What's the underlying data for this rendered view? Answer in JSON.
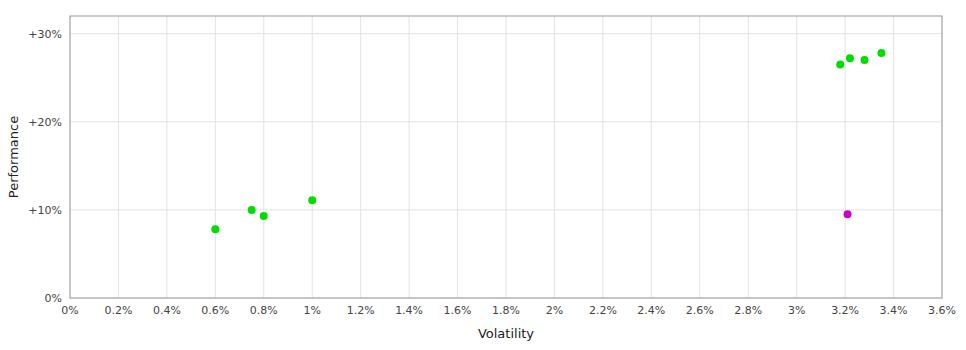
{
  "chart_data": {
    "type": "scatter",
    "x_label": "Volatility",
    "y_label": "Performance",
    "series": [
      {
        "color": "#00dd00",
        "x": [
          0.006,
          0.0075,
          0.008,
          0.01,
          0.0318,
          0.0322,
          0.0328,
          0.0335
        ],
        "values": [
          0.078,
          0.1,
          0.093,
          0.111,
          0.265,
          0.272,
          0.27,
          0.278
        ]
      },
      {
        "color": "#cc00cc",
        "x": [
          0.0321
        ],
        "values": [
          0.095
        ]
      }
    ],
    "xlim": [
      0.0,
      0.036
    ],
    "ylim": [
      0.0,
      0.32
    ],
    "xticks": [
      {
        "value": 0.0,
        "label": "0%"
      },
      {
        "value": 0.002,
        "label": "0.2%"
      },
      {
        "value": 0.004,
        "label": "0.4%"
      },
      {
        "value": 0.006,
        "label": "0.6%"
      },
      {
        "value": 0.008,
        "label": "0.8%"
      },
      {
        "value": 0.01,
        "label": "1%"
      },
      {
        "value": 0.012,
        "label": "1.2%"
      },
      {
        "value": 0.014,
        "label": "1.4%"
      },
      {
        "value": 0.016,
        "label": "1.6%"
      },
      {
        "value": 0.018,
        "label": "1.8%"
      },
      {
        "value": 0.02,
        "label": "2%"
      },
      {
        "value": 0.022,
        "label": "2.2%"
      },
      {
        "value": 0.024,
        "label": "2.4%"
      },
      {
        "value": 0.026,
        "label": "2.6%"
      },
      {
        "value": 0.028,
        "label": "2.8%"
      },
      {
        "value": 0.03,
        "label": "3%"
      },
      {
        "value": 0.032,
        "label": "3.2%"
      },
      {
        "value": 0.034,
        "label": "3.4%"
      },
      {
        "value": 0.036,
        "label": "3.6%"
      }
    ],
    "yticks": [
      {
        "value": 0.0,
        "label": "0%"
      },
      {
        "value": 0.1,
        "label": "+10%"
      },
      {
        "value": 0.2,
        "label": "+20%"
      },
      {
        "value": 0.3,
        "label": "+30%"
      }
    ],
    "grid": true
  }
}
